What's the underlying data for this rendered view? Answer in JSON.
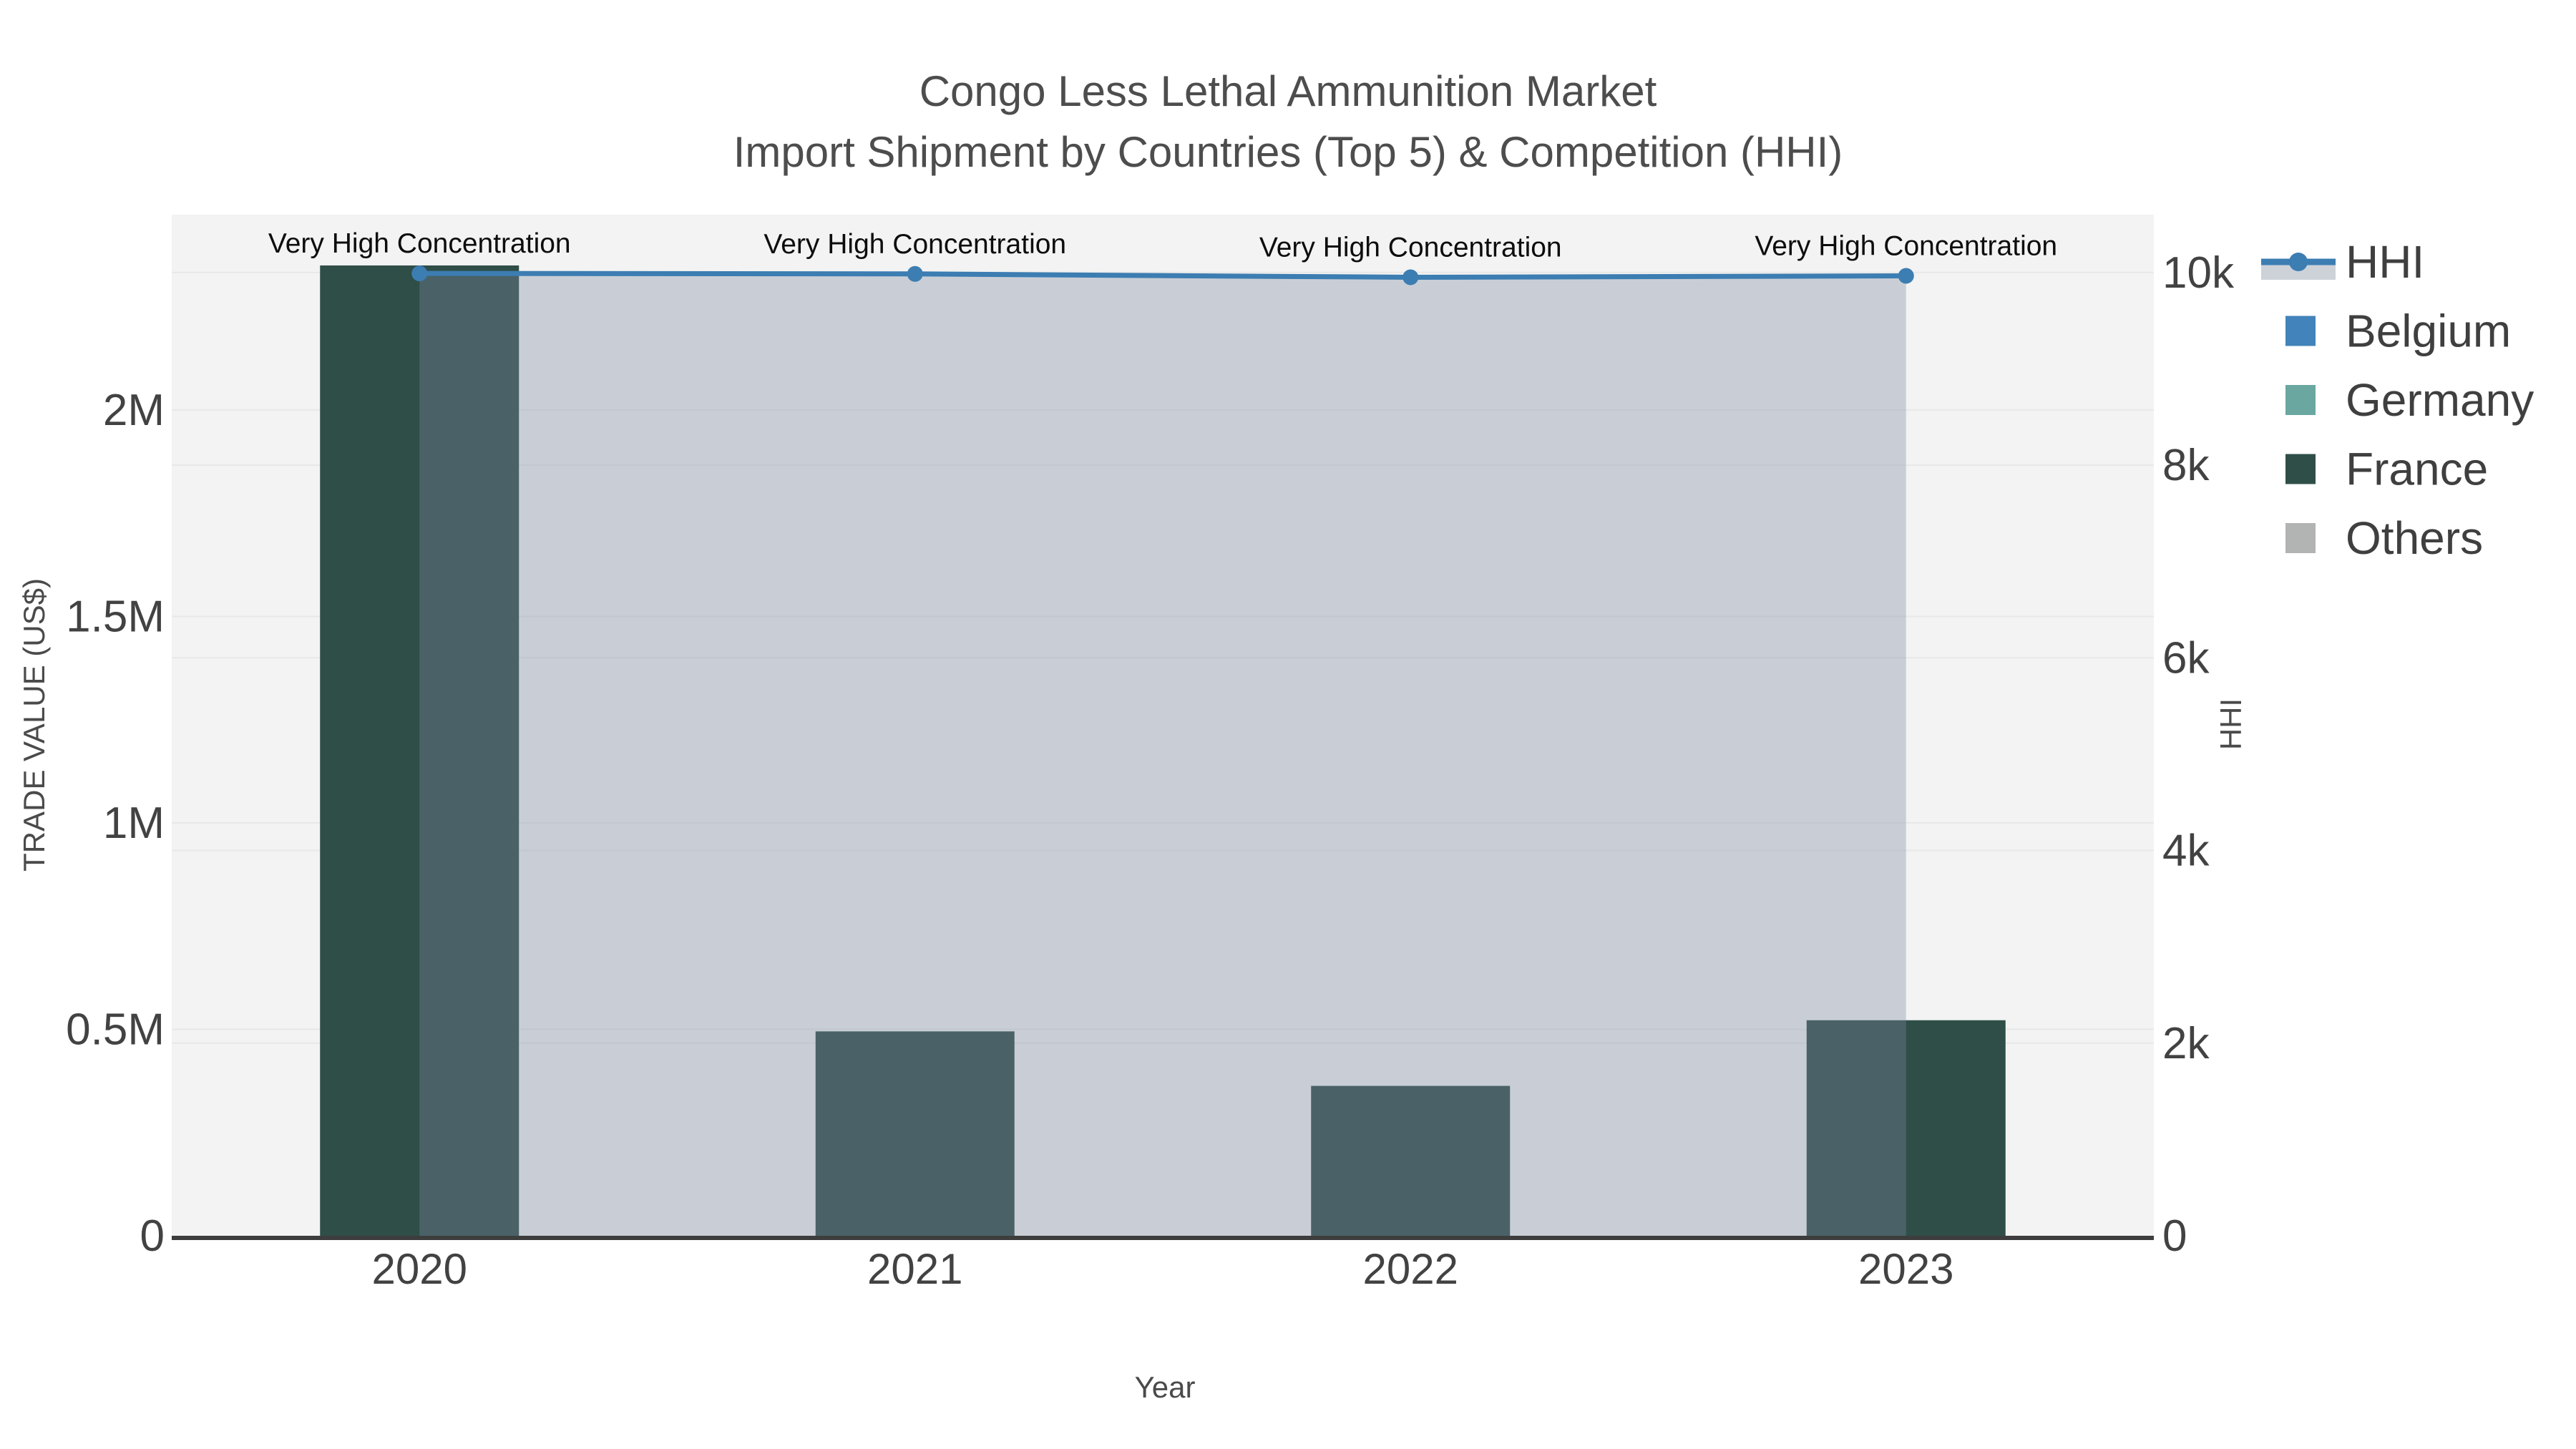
{
  "chart_data": {
    "type": "bar+line",
    "title": "Congo Less Lethal Ammunition Market",
    "subtitle": "Import Shipment by Countries (Top 5) & Competition (HHI)",
    "xlabel": "Year",
    "categories": [
      "2020",
      "2021",
      "2022",
      "2023"
    ],
    "left_axis": {
      "label": "TRADE VALUE (US$)",
      "tick_labels": [
        "0",
        "0.5M",
        "1M",
        "1.5M",
        "2M"
      ],
      "tick_values": [
        0,
        500000,
        1000000,
        1500000,
        2000000
      ],
      "range": [
        0,
        2473000
      ]
    },
    "right_axis": {
      "label": "HHI",
      "tick_labels": [
        "0",
        "2k",
        "4k",
        "6k",
        "8k",
        "10k"
      ],
      "tick_values": [
        0,
        2000,
        4000,
        6000,
        8000,
        10000
      ],
      "range": [
        0,
        10600
      ]
    },
    "bar_series": [
      {
        "name": "Belgium",
        "color": "#4183ba",
        "values": [
          0,
          0,
          0,
          0
        ]
      },
      {
        "name": "Germany",
        "color": "#6aa7a0",
        "values": [
          0,
          0,
          0,
          0
        ]
      },
      {
        "name": "France",
        "color": "#2f4e48",
        "values": [
          2350000,
          495000,
          363000,
          522000
        ]
      },
      {
        "name": "Others",
        "color": "#b1b4b3",
        "values": [
          0,
          0,
          0,
          0
        ]
      }
    ],
    "line_series": {
      "name": "HHI",
      "color": "#3c7db2",
      "values": [
        9990,
        9985,
        9950,
        9965
      ],
      "area_fill": "rgba(125,137,162,0.35)",
      "legend_band": "#cdd2d9"
    },
    "point_annotations": [
      "Very High Concentration",
      "Very High Concentration",
      "Very High Concentration",
      "Very High Concentration"
    ],
    "legend_order": [
      "HHI",
      "Belgium",
      "Germany",
      "France",
      "Others"
    ],
    "colors": {
      "plot_bg": "#f2f3f2",
      "grid": "#e7e8e7",
      "axis_line": "#3d3d3d",
      "tick_text": "#424242",
      "title_text": "#4d4d4d",
      "annotation_text": "#0d0d0d",
      "legend_text": "#3f3f3f",
      "axis_title_text": "#4a4a4a"
    }
  }
}
